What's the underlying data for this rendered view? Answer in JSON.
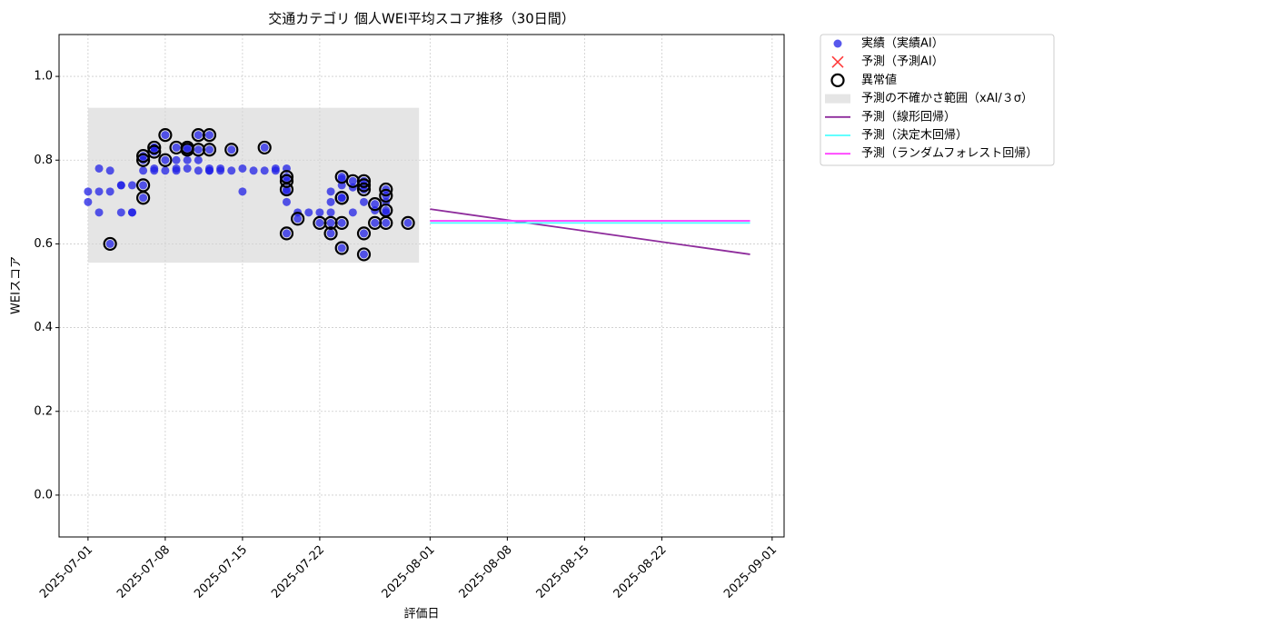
{
  "chart_data": {
    "type": "scatter",
    "title": "交通カテゴリ 個人WEI平均スコア推移（30日間）",
    "xlabel": "評価日",
    "ylabel": "WEIスコア",
    "xlim": [
      "2025-06-28T09:00Z",
      "2025-09-02T02:00Z"
    ],
    "ylim": [
      -0.1,
      1.1
    ],
    "xticks": [
      "2025-07-01",
      "2025-07-08",
      "2025-07-15",
      "2025-07-22",
      "2025-08-01",
      "2025-08-08",
      "2025-08-15",
      "2025-08-22",
      "2025-09-01"
    ],
    "yticks": [
      {
        "value": 0,
        "label": "0.0"
      },
      0.2,
      0.4,
      0.6,
      0.8,
      {
        "value": 1,
        "label": "1.0"
      }
    ],
    "grid": true,
    "legend": "outside upper right",
    "series": [
      {
        "name": "実績（実績AI）",
        "marker": "o",
        "color": "#1f1fe6",
        "x": [
          "2025-07-01",
          "2025-07-01",
          "2025-07-02",
          "2025-07-02",
          "2025-07-02",
          "2025-07-03",
          "2025-07-03",
          "2025-07-03",
          "2025-07-04",
          "2025-07-04",
          "2025-07-04",
          "2025-07-05",
          "2025-07-05",
          "2025-07-05",
          "2025-07-06",
          "2025-07-06",
          "2025-07-06",
          "2025-07-06",
          "2025-07-06",
          "2025-07-07",
          "2025-07-07",
          "2025-07-07",
          "2025-07-07",
          "2025-07-07",
          "2025-07-08",
          "2025-07-08",
          "2025-07-08",
          "2025-07-09",
          "2025-07-09",
          "2025-07-09",
          "2025-07-09",
          "2025-07-10",
          "2025-07-10",
          "2025-07-10",
          "2025-07-10",
          "2025-07-11",
          "2025-07-11",
          "2025-07-11",
          "2025-07-11",
          "2025-07-12",
          "2025-07-12",
          "2025-07-12",
          "2025-07-12",
          "2025-07-12",
          "2025-07-13",
          "2025-07-13",
          "2025-07-14",
          "2025-07-14",
          "2025-07-15",
          "2025-07-15",
          "2025-07-16",
          "2025-07-17",
          "2025-07-17",
          "2025-07-18",
          "2025-07-18",
          "2025-07-19",
          "2025-07-19",
          "2025-07-19",
          "2025-07-19",
          "2025-07-19",
          "2025-07-19",
          "2025-07-19",
          "2025-07-20",
          "2025-07-20",
          "2025-07-21",
          "2025-07-22",
          "2025-07-22",
          "2025-07-23",
          "2025-07-23",
          "2025-07-23",
          "2025-07-23",
          "2025-07-23",
          "2025-07-24",
          "2025-07-24",
          "2025-07-24",
          "2025-07-24",
          "2025-07-24",
          "2025-07-24",
          "2025-07-24",
          "2025-07-25",
          "2025-07-25",
          "2025-07-25",
          "2025-07-26",
          "2025-07-26",
          "2025-07-26",
          "2025-07-26",
          "2025-07-26",
          "2025-07-26",
          "2025-07-27",
          "2025-07-27",
          "2025-07-27",
          "2025-07-28",
          "2025-07-28",
          "2025-07-28",
          "2025-07-28",
          "2025-07-28",
          "2025-07-28",
          "2025-07-30"
        ],
        "values": [
          0.725,
          0.7,
          0.78,
          0.725,
          0.675,
          0.775,
          0.725,
          0.6,
          0.74,
          0.675,
          0.74,
          0.675,
          0.675,
          0.74,
          0.775,
          0.74,
          0.71,
          0.8,
          0.81,
          0.775,
          0.82,
          0.78,
          0.83,
          0.83,
          0.86,
          0.8,
          0.775,
          0.83,
          0.775,
          0.78,
          0.8,
          0.8,
          0.825,
          0.78,
          0.83,
          0.775,
          0.8,
          0.825,
          0.86,
          0.78,
          0.825,
          0.775,
          0.86,
          0.775,
          0.775,
          0.78,
          0.775,
          0.825,
          0.725,
          0.78,
          0.775,
          0.775,
          0.83,
          0.775,
          0.78,
          0.78,
          0.76,
          0.75,
          0.725,
          0.7,
          0.625,
          0.73,
          0.66,
          0.675,
          0.675,
          0.65,
          0.675,
          0.725,
          0.7,
          0.675,
          0.65,
          0.625,
          0.59,
          0.65,
          0.71,
          0.76,
          0.74,
          0.71,
          0.755,
          0.75,
          0.675,
          0.735,
          0.7,
          0.74,
          0.75,
          0.625,
          0.575,
          0.73,
          0.65,
          0.695,
          0.68,
          0.68,
          0.715,
          0.675,
          0.65,
          0.7,
          0.73,
          0.65
        ]
      },
      {
        "name": "予測（予測AI）",
        "marker": "x",
        "color": "#ff3b3b",
        "x": [],
        "values": []
      },
      {
        "name": "異常値",
        "marker": "ring",
        "color": "#000000",
        "x": [
          "2025-07-03",
          "2025-07-06",
          "2025-07-06",
          "2025-07-06",
          "2025-07-06",
          "2025-07-07",
          "2025-07-07",
          "2025-07-08",
          "2025-07-08",
          "2025-07-09",
          "2025-07-10",
          "2025-07-10",
          "2025-07-11",
          "2025-07-11",
          "2025-07-12",
          "2025-07-12",
          "2025-07-14",
          "2025-07-17",
          "2025-07-19",
          "2025-07-19",
          "2025-07-19",
          "2025-07-19",
          "2025-07-20",
          "2025-07-22",
          "2025-07-23",
          "2025-07-23",
          "2025-07-24",
          "2025-07-24",
          "2025-07-24",
          "2025-07-24",
          "2025-07-24",
          "2025-07-25",
          "2025-07-26",
          "2025-07-26",
          "2025-07-26",
          "2025-07-26",
          "2025-07-26",
          "2025-07-27",
          "2025-07-27",
          "2025-07-28",
          "2025-07-28",
          "2025-07-28",
          "2025-07-28",
          "2025-07-30"
        ],
        "values": [
          0.6,
          0.74,
          0.71,
          0.8,
          0.81,
          0.82,
          0.83,
          0.86,
          0.8,
          0.83,
          0.825,
          0.83,
          0.825,
          0.86,
          0.825,
          0.86,
          0.825,
          0.83,
          0.76,
          0.75,
          0.73,
          0.625,
          0.66,
          0.65,
          0.65,
          0.625,
          0.59,
          0.65,
          0.71,
          0.76,
          0.71,
          0.75,
          0.74,
          0.75,
          0.73,
          0.625,
          0.575,
          0.65,
          0.695,
          0.68,
          0.715,
          0.65,
          0.73,
          0.65
        ]
      },
      {
        "name": "予測の不確かさ範囲（xAI/３σ）",
        "marker": "band",
        "color": "#d3d3d3",
        "x": [
          "2025-07-01",
          "2025-07-31"
        ],
        "lower": 0.555,
        "upper": 0.925
      },
      {
        "name": "予測（線形回帰）",
        "marker": "line",
        "color": "#8e2c9c",
        "x": [
          "2025-08-01",
          "2025-08-30"
        ],
        "values": [
          0.683,
          0.575
        ]
      },
      {
        "name": "予測（決定木回帰）",
        "marker": "line",
        "color": "#4dffff",
        "x": [
          "2025-08-01",
          "2025-08-30"
        ],
        "values": [
          0.65,
          0.65
        ]
      },
      {
        "name": "予測（ランダムフォレスト回帰）",
        "marker": "line",
        "color": "#ff40ff",
        "x": [
          "2025-08-01",
          "2025-08-30"
        ],
        "values": [
          0.655,
          0.655
        ]
      }
    ]
  }
}
